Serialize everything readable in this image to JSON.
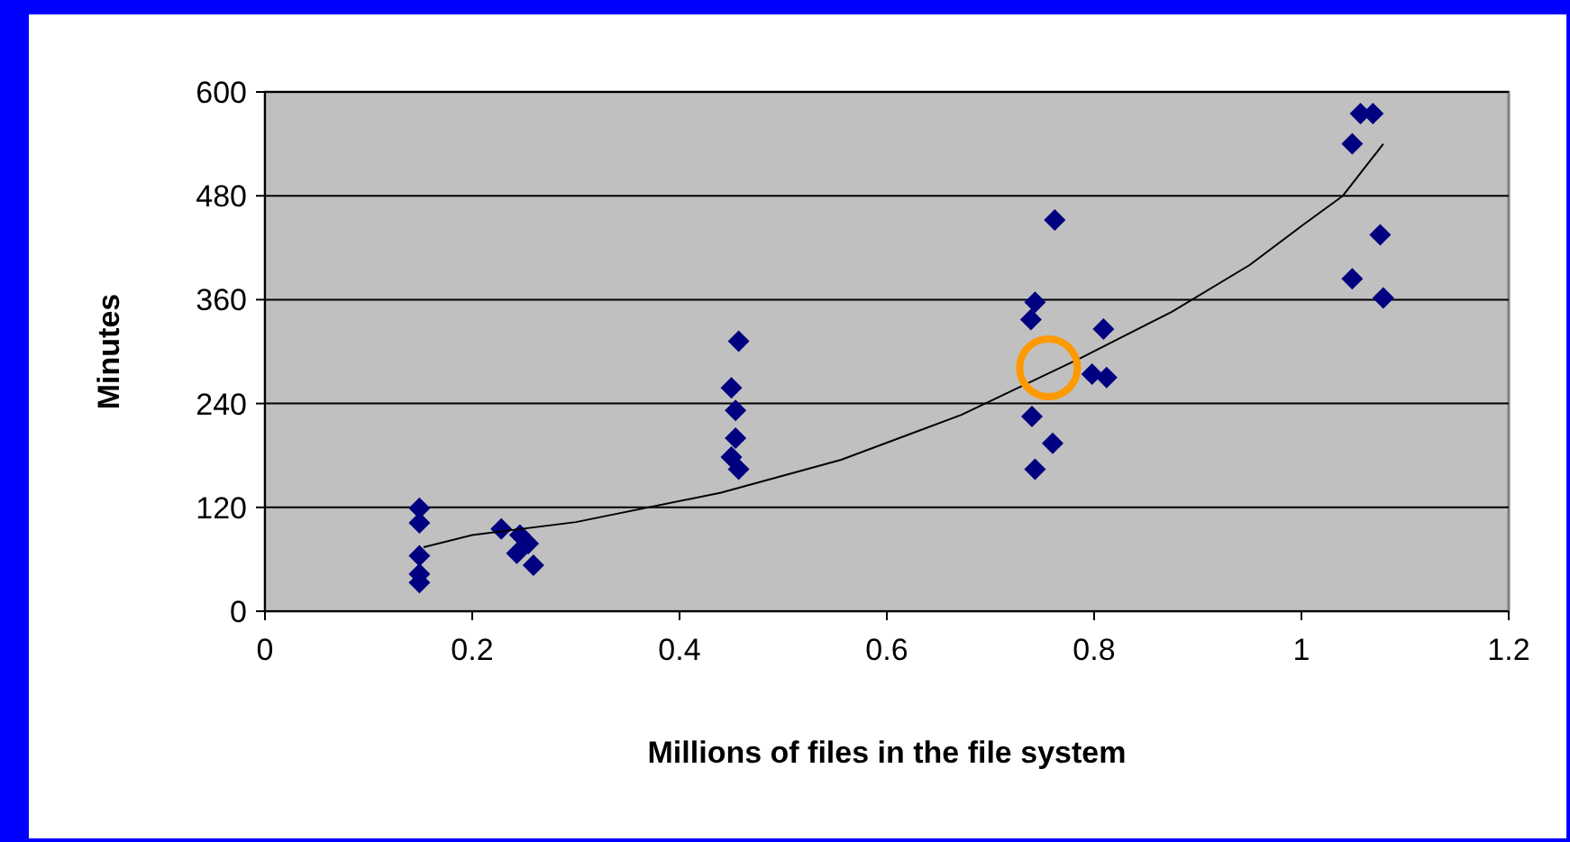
{
  "chart_data": {
    "type": "scatter",
    "xlabel": "Millions of files in the file system",
    "ylabel": "Minutes",
    "xlim": [
      0,
      1.2
    ],
    "ylim": [
      0,
      600
    ],
    "xticks": [
      0,
      0.2,
      0.4,
      0.6,
      0.8,
      1,
      1.2
    ],
    "yticks": [
      0,
      120,
      240,
      360,
      480,
      600
    ],
    "grid": "y",
    "marker": "diamond",
    "series": [
      {
        "color": "#000080",
        "x": [
          0.149,
          0.149,
          0.149,
          0.149,
          0.149,
          0.228,
          0.246,
          0.254,
          0.243,
          0.259,
          0.457,
          0.45,
          0.454,
          0.454,
          0.45,
          0.457,
          0.743,
          0.739,
          0.809,
          0.74,
          0.76,
          0.743,
          0.798,
          0.812,
          0.762,
          1.057,
          1.069,
          1.049,
          1.076,
          1.049,
          1.079
        ],
        "values": [
          119,
          102,
          64,
          43,
          33,
          95,
          88,
          78,
          67,
          53,
          312,
          258,
          232,
          200,
          178,
          164,
          357,
          337,
          326,
          225,
          194,
          164,
          274,
          270,
          452,
          575,
          575,
          540,
          435,
          384,
          362
        ]
      },
      {
        "type": "line",
        "color": "#000000",
        "marker": "none",
        "x": [
          0.153,
          0.2,
          0.3,
          0.44,
          0.556,
          0.672,
          0.788,
          0.875,
          0.95,
          1.0,
          1.04,
          1.079
        ],
        "values": [
          74,
          88,
          103,
          137,
          175,
          227,
          293,
          346,
          400,
          445,
          480,
          540
        ]
      }
    ]
  }
}
